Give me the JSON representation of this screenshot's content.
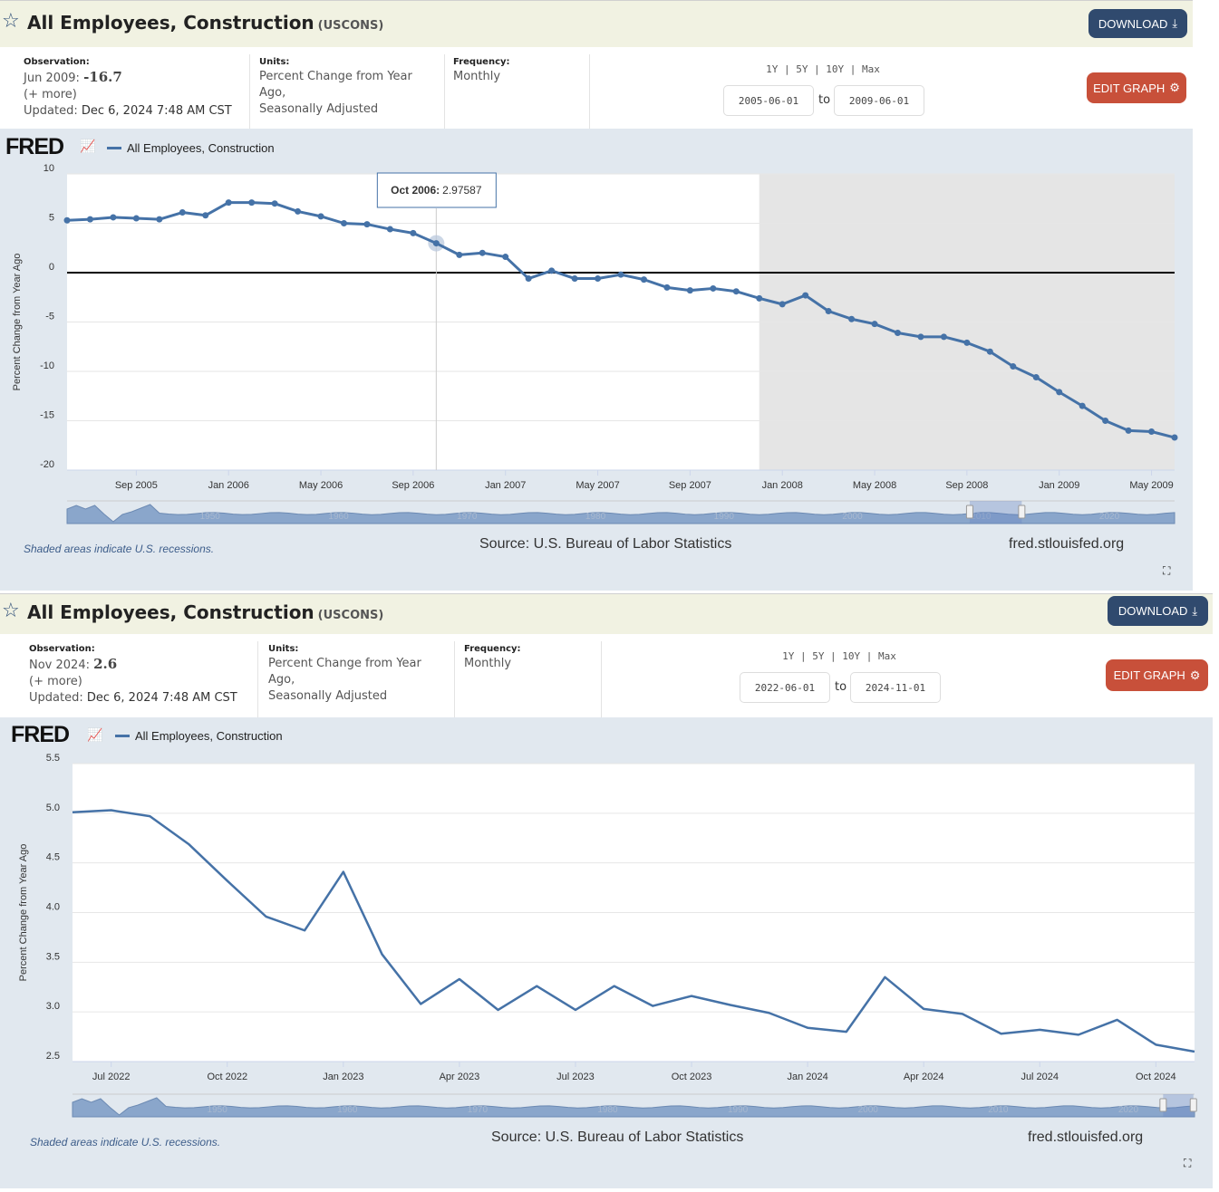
{
  "panels": [
    {
      "title": "All Employees, Construction",
      "series_id": "(USCONS)",
      "download_label": "DOWNLOAD",
      "edit_label": "EDIT GRAPH",
      "observation": {
        "label": "Observation:",
        "date": "Jun 2009:",
        "value": "-16.7",
        "more": "(+ more)",
        "updated_label": "Updated:",
        "updated": "Dec 6, 2024 7:48 AM CST"
      },
      "units": {
        "label": "Units:",
        "line1": "Percent Change from Year",
        "line2": "Ago,",
        "line3": "Seasonally Adjusted"
      },
      "frequency": {
        "label": "Frequency:",
        "value": "Monthly"
      },
      "range_links": "1Y | 5Y | 10Y | Max",
      "date_from": "2005-06-01",
      "to_label": "to",
      "date_to": "2009-06-01",
      "logo": "FRED",
      "legend": "All Employees, Construction",
      "recession_note": "Shaded areas indicate U.S. recessions.",
      "source": "Source: U.S. Bureau of Labor Statistics",
      "site": "fred.stlouisfed.org",
      "tooltip": {
        "date": "Oct 2006:",
        "value": "2.97587"
      }
    },
    {
      "title": "All Employees, Construction",
      "series_id": "(USCONS)",
      "download_label": "DOWNLOAD",
      "edit_label": "EDIT GRAPH",
      "observation": {
        "label": "Observation:",
        "date": "Nov 2024:",
        "value": "2.6",
        "more": "(+ more)",
        "updated_label": "Updated:",
        "updated": "Dec 6, 2024 7:48 AM CST"
      },
      "units": {
        "label": "Units:",
        "line1": "Percent Change from Year",
        "line2": "Ago,",
        "line3": "Seasonally Adjusted"
      },
      "frequency": {
        "label": "Frequency:",
        "value": "Monthly"
      },
      "range_links": "1Y | 5Y | 10Y | Max",
      "date_from": "2022-06-01",
      "to_label": "to",
      "date_to": "2024-11-01",
      "logo": "FRED",
      "legend": "All Employees, Construction",
      "recession_note": "Shaded areas indicate U.S. recessions.",
      "source": "Source: U.S. Bureau of Labor Statistics",
      "site": "fred.stlouisfed.org"
    }
  ],
  "chart_data": [
    {
      "type": "line",
      "title": "All Employees, Construction",
      "ylabel": "Percent Change from Year Ago",
      "ylim": [
        -20,
        10
      ],
      "yticks": [
        "10",
        "5",
        "0",
        "-5",
        "-10",
        "-15",
        "-20"
      ],
      "ytick_values": [
        10,
        5,
        0,
        -5,
        -10,
        -15,
        -20
      ],
      "x_start": "2005-06",
      "xticks": [
        {
          "i": 3,
          "label": "Sep 2005"
        },
        {
          "i": 7,
          "label": "Jan 2006"
        },
        {
          "i": 11,
          "label": "May 2006"
        },
        {
          "i": 15,
          "label": "Sep 2006"
        },
        {
          "i": 19,
          "label": "Jan 2007"
        },
        {
          "i": 23,
          "label": "May 2007"
        },
        {
          "i": 27,
          "label": "Sep 2007"
        },
        {
          "i": 31,
          "label": "Jan 2008"
        },
        {
          "i": 35,
          "label": "May 2008"
        },
        {
          "i": 39,
          "label": "Sep 2008"
        },
        {
          "i": 43,
          "label": "Jan 2009"
        },
        {
          "i": 47,
          "label": "May 2009"
        }
      ],
      "values": [
        5.3,
        5.4,
        5.6,
        5.5,
        5.4,
        6.1,
        5.8,
        7.1,
        7.1,
        7.0,
        6.2,
        5.7,
        5.0,
        4.9,
        4.4,
        4.0,
        2.97587,
        1.8,
        2.0,
        1.6,
        -0.6,
        0.2,
        -0.6,
        -0.6,
        -0.2,
        -0.7,
        -1.5,
        -1.8,
        -1.6,
        -1.9,
        -2.6,
        -3.2,
        -2.3,
        -3.9,
        -4.7,
        -5.2,
        -6.1,
        -6.5,
        -6.5,
        -7.1,
        -8.0,
        -9.5,
        -10.6,
        -12.1,
        -13.5,
        -15.0,
        -16.0,
        -16.1,
        -16.7
      ],
      "markers": true,
      "zero_line": true,
      "recession": [
        30,
        48
      ],
      "highlight_index": 16,
      "navigator_labels": [
        "1950",
        "1960",
        "1970",
        "1980",
        "1990",
        "2000",
        "2010",
        "2020"
      ],
      "navigator_window": [
        0.815,
        0.862
      ],
      "color": "#4572a7"
    },
    {
      "type": "line",
      "title": "All Employees, Construction",
      "ylabel": "Percent Change from Year Ago",
      "ylim": [
        2.5,
        5.5
      ],
      "yticks": [
        "5.5",
        "5.0",
        "4.5",
        "4.0",
        "3.5",
        "3.0",
        "2.5"
      ],
      "ytick_values": [
        5.5,
        5.0,
        4.5,
        4.0,
        3.5,
        3.0,
        2.5
      ],
      "x_start": "2022-06",
      "xticks": [
        {
          "i": 1,
          "label": "Jul 2022"
        },
        {
          "i": 4,
          "label": "Oct 2022"
        },
        {
          "i": 7,
          "label": "Jan 2023"
        },
        {
          "i": 10,
          "label": "Apr 2023"
        },
        {
          "i": 13,
          "label": "Jul 2023"
        },
        {
          "i": 16,
          "label": "Oct 2023"
        },
        {
          "i": 19,
          "label": "Jan 2024"
        },
        {
          "i": 22,
          "label": "Apr 2024"
        },
        {
          "i": 25,
          "label": "Jul 2024"
        },
        {
          "i": 28,
          "label": "Oct 2024"
        }
      ],
      "values": [
        5.01,
        5.03,
        4.97,
        4.69,
        4.32,
        3.96,
        3.82,
        4.41,
        3.58,
        3.08,
        3.33,
        3.02,
        3.26,
        3.02,
        3.26,
        3.06,
        3.16,
        3.07,
        2.99,
        2.84,
        2.8,
        3.35,
        3.03,
        2.98,
        2.78,
        2.82,
        2.77,
        2.92,
        2.67,
        2.6
      ],
      "markers": false,
      "zero_line": false,
      "navigator_labels": [
        "1950",
        "1960",
        "1970",
        "1980",
        "1990",
        "2000",
        "2010",
        "2020"
      ],
      "navigator_window": [
        0.972,
        0.999
      ],
      "color": "#4572a7"
    }
  ]
}
